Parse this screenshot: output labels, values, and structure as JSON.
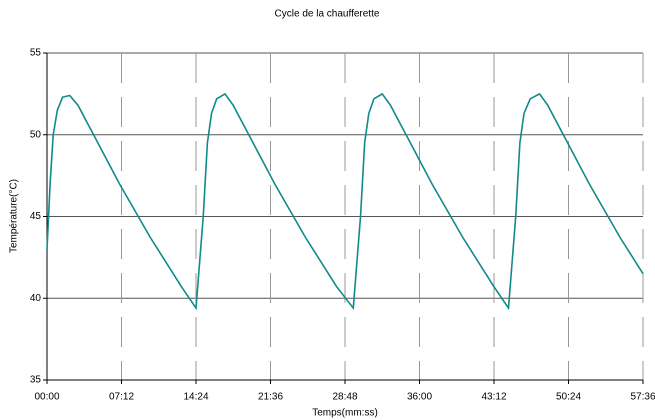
{
  "chart_data": {
    "type": "line",
    "title": "Cycle de la chaufferette",
    "x_label": "Temps(mm:ss)",
    "y_label": "Température(°C)",
    "xlim": [
      0,
      57.6
    ],
    "xticks": [
      {
        "value": 0,
        "label": "00:00"
      },
      {
        "value": 7.2,
        "label": "07:12"
      },
      {
        "value": 14.4,
        "label": "14:24"
      },
      {
        "value": 21.6,
        "label": "21:36"
      },
      {
        "value": 28.8,
        "label": "28:48"
      },
      {
        "value": 36,
        "label": "36:00"
      },
      {
        "value": 43.2,
        "label": "43:12"
      },
      {
        "value": 50.4,
        "label": "50:24"
      },
      {
        "value": 57.6,
        "label": "57:36"
      }
    ],
    "ylim": [
      35,
      55
    ],
    "yticks": [
      35,
      40,
      45,
      50,
      55
    ],
    "grid": true,
    "x": [
      0,
      0.3,
      0.6,
      1.0,
      1.5,
      2.2,
      3.0,
      4.0,
      5.0,
      6.0,
      7.0,
      8.0,
      9.0,
      10.0,
      11.0,
      12.0,
      13.0,
      14.4,
      14.6,
      15.1,
      15.5,
      15.9,
      16.4,
      17.2,
      18.0,
      19.0,
      20.0,
      21.0,
      22.0,
      23.0,
      24.0,
      25.0,
      26.0,
      27.0,
      28.0,
      29.6,
      29.8,
      30.3,
      30.7,
      31.1,
      31.6,
      32.4,
      33.2,
      34.2,
      35.2,
      36.2,
      37.2,
      38.2,
      39.2,
      40.2,
      41.2,
      42.2,
      43.2,
      44.6,
      44.8,
      45.3,
      45.7,
      46.1,
      46.7,
      47.6,
      48.4,
      49.4,
      50.4,
      51.4,
      52.4,
      53.4,
      54.4,
      55.4,
      56.4,
      57.6
    ],
    "series": [
      {
        "name": "Température",
        "color": "#108a8a",
        "values": [
          43,
          47,
          50,
          51.5,
          52.3,
          52.4,
          51.8,
          50.6,
          49.4,
          48.2,
          47.0,
          45.9,
          44.8,
          43.7,
          42.7,
          41.7,
          40.7,
          39.4,
          41,
          45,
          49.5,
          51.3,
          52.2,
          52.5,
          51.8,
          50.6,
          49.4,
          48.2,
          47.0,
          45.9,
          44.8,
          43.7,
          42.7,
          41.7,
          40.7,
          39.4,
          41,
          45,
          49.5,
          51.3,
          52.2,
          52.5,
          51.8,
          50.6,
          49.4,
          48.2,
          47.0,
          45.9,
          44.8,
          43.7,
          42.7,
          41.7,
          40.7,
          39.4,
          41,
          45,
          49.5,
          51.3,
          52.2,
          52.5,
          51.8,
          50.6,
          49.4,
          48.2,
          47.0,
          45.9,
          44.8,
          43.7,
          42.7,
          41.5
        ]
      }
    ]
  }
}
